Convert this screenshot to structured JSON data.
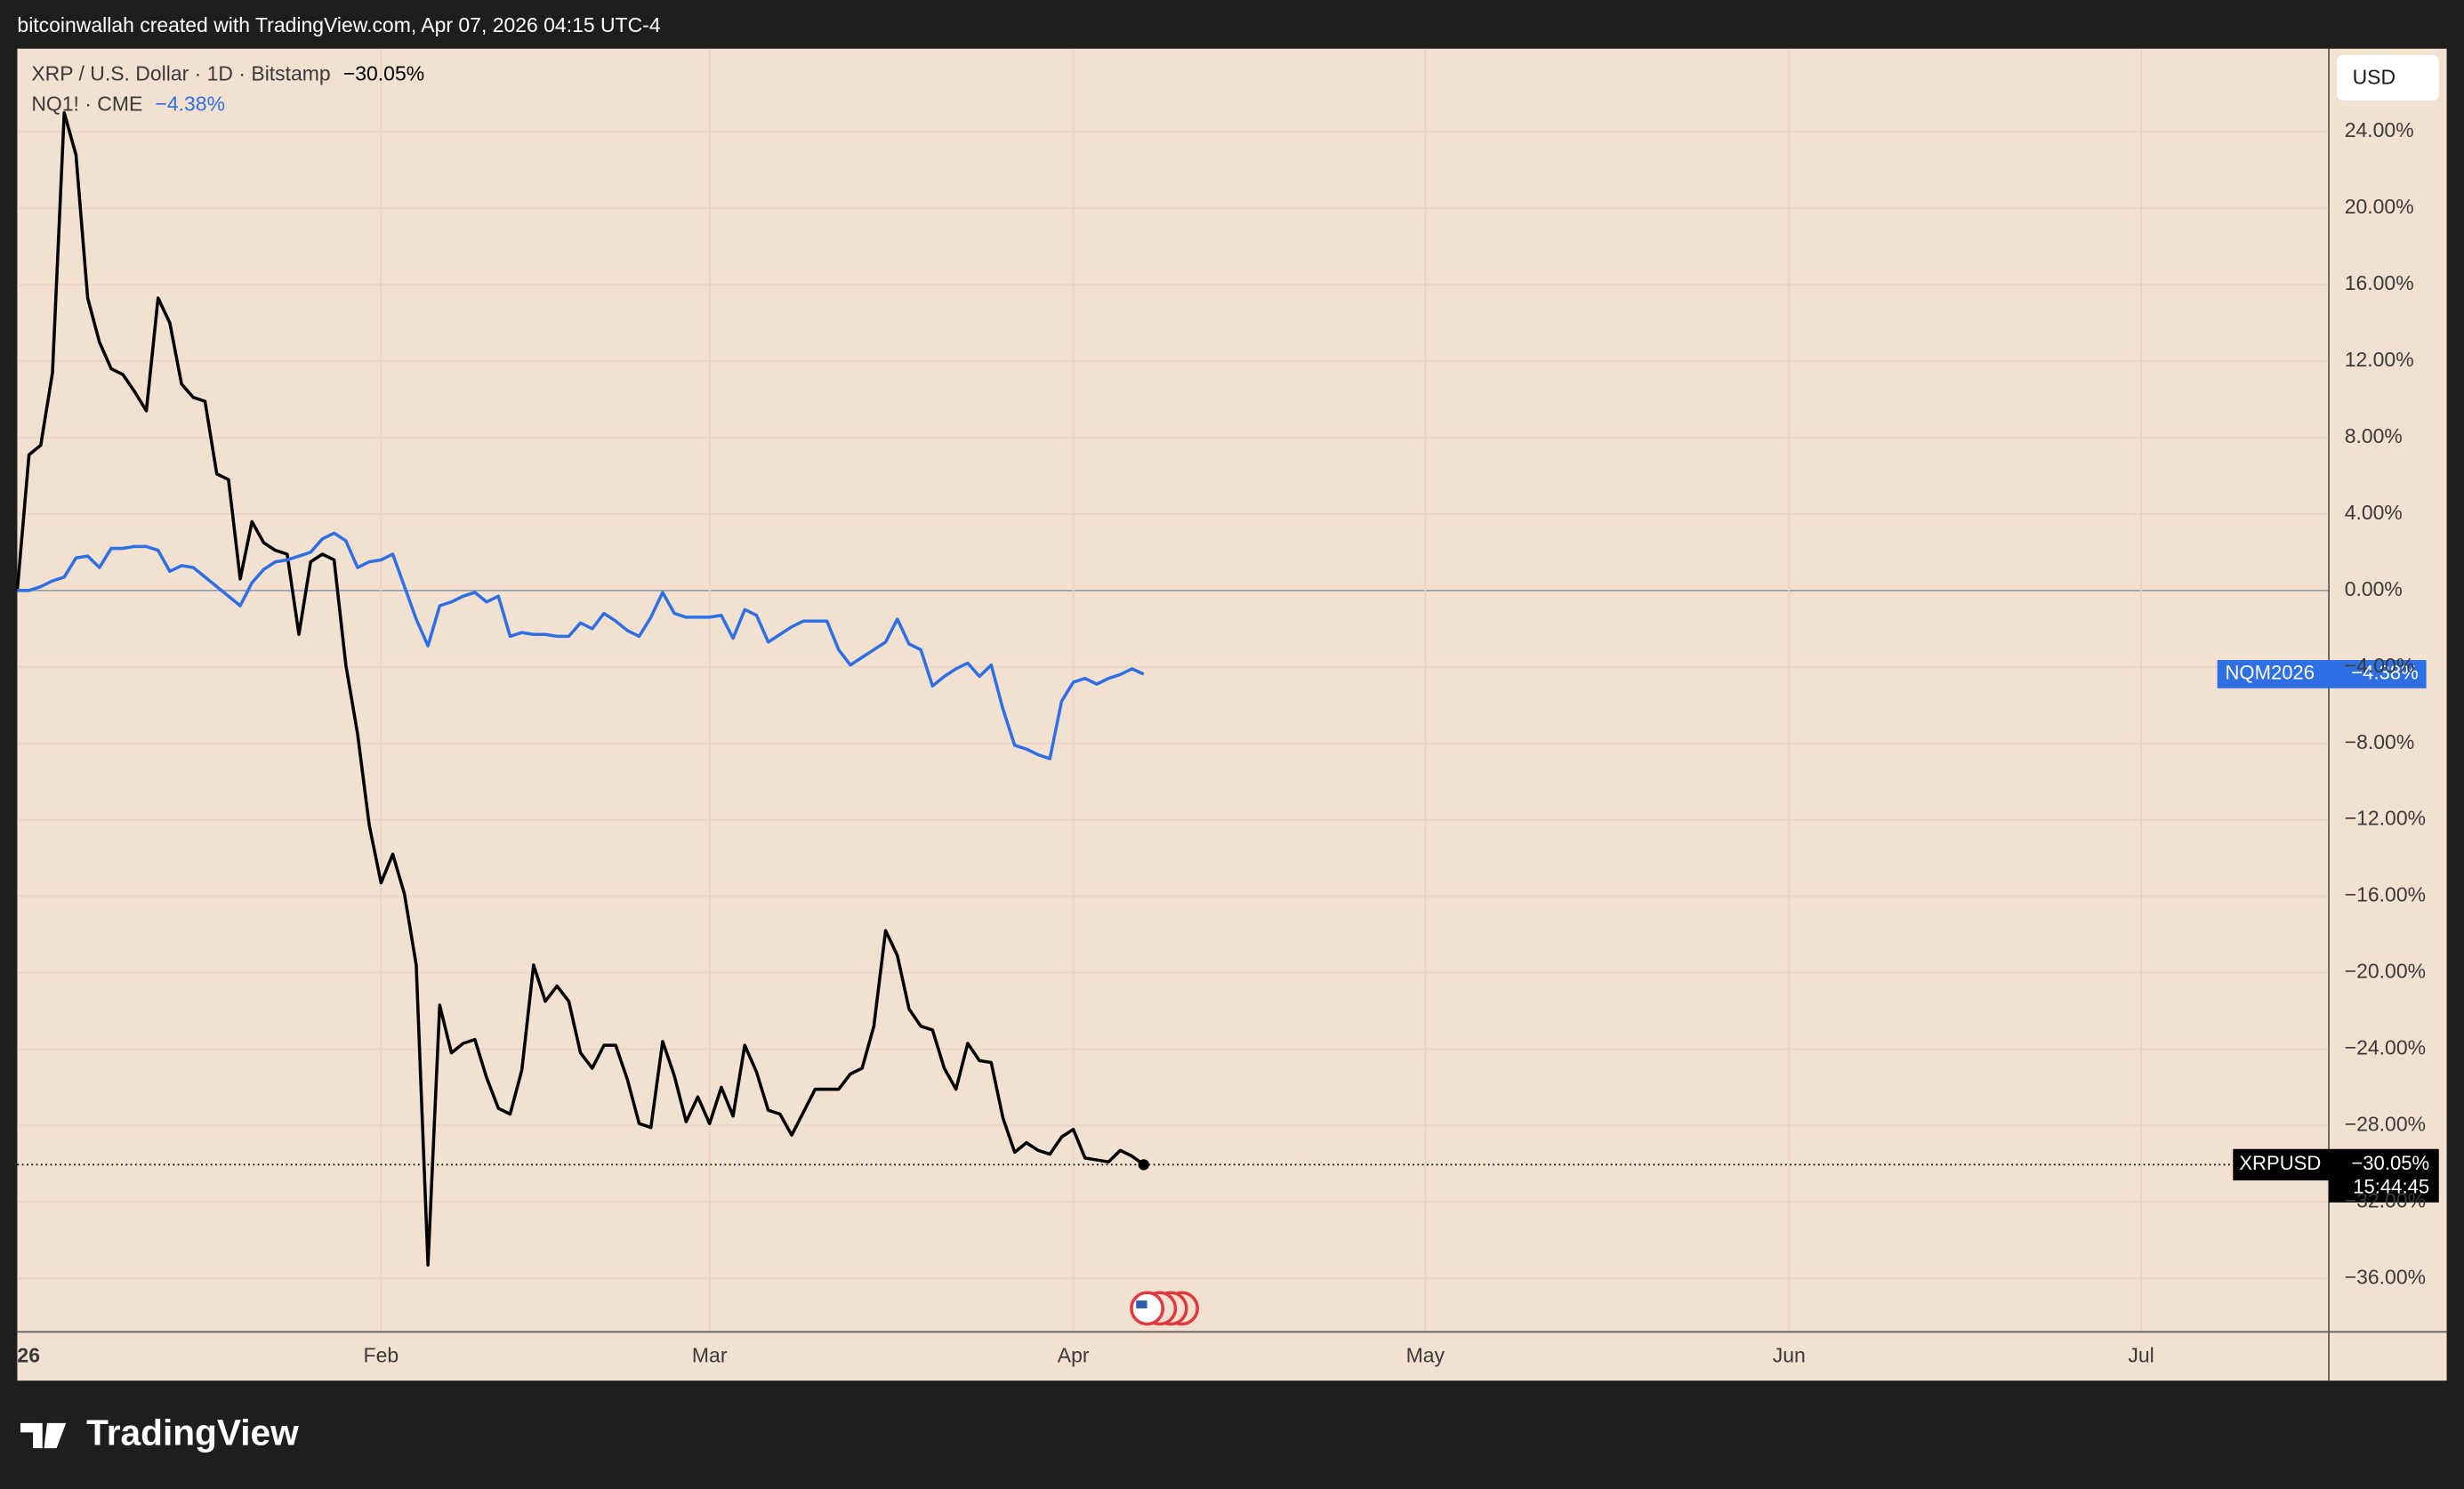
{
  "chart_data": {
    "type": "line",
    "header": "bitcoinwallah created with TradingView.com, Apr 07, 2026 04:15 UTC-4",
    "currency": "USD",
    "brand": "TradingView",
    "countdown": "15:44:45",
    "x": [
      1,
      2,
      3,
      4,
      5,
      6,
      7,
      8,
      9,
      10,
      11,
      12,
      13,
      14,
      15,
      16,
      17,
      18,
      19,
      20,
      21,
      22,
      23,
      24,
      25,
      26,
      27,
      28,
      29,
      30,
      31,
      32,
      33,
      34,
      35,
      36,
      37,
      38,
      39,
      40,
      41,
      42,
      43,
      44,
      45,
      46,
      47,
      48,
      49,
      50,
      51,
      52,
      53,
      54,
      55,
      56,
      57,
      58,
      59,
      60,
      61,
      62,
      63,
      64,
      65,
      66,
      67,
      68,
      69,
      70,
      71,
      72,
      73,
      74,
      75,
      76,
      77,
      78,
      79,
      80,
      81,
      82,
      83,
      84,
      85,
      86,
      87,
      88,
      89,
      90,
      91,
      92,
      93,
      94,
      95,
      96,
      97
    ],
    "xlim": [
      1,
      198
    ],
    "xticks": [
      {
        "value": 1,
        "label": "26"
      },
      {
        "value": 32,
        "label": "Feb"
      },
      {
        "value": 60,
        "label": "Mar"
      },
      {
        "value": 91,
        "label": "Apr"
      },
      {
        "value": 121,
        "label": "May"
      },
      {
        "value": 152,
        "label": "Jun"
      },
      {
        "value": 182,
        "label": "Jul"
      }
    ],
    "ylim": [
      -38.8,
      28.35
    ],
    "yticks": [
      {
        "value": 24,
        "label": "24.00%"
      },
      {
        "value": 20,
        "label": "20.00%"
      },
      {
        "value": 16,
        "label": "16.00%"
      },
      {
        "value": 12,
        "label": "12.00%"
      },
      {
        "value": 8,
        "label": "8.00%"
      },
      {
        "value": 4,
        "label": "4.00%"
      },
      {
        "value": 0,
        "label": "0.00%"
      },
      {
        "value": -4,
        "label": "−4.00%"
      },
      {
        "value": -8,
        "label": "−8.00%"
      },
      {
        "value": -12,
        "label": "−12.00%"
      },
      {
        "value": -16,
        "label": "−16.00%"
      },
      {
        "value": -20,
        "label": "−20.00%"
      },
      {
        "value": -24,
        "label": "−24.00%"
      },
      {
        "value": -28,
        "label": "−28.00%"
      },
      {
        "value": -32,
        "label": "−32.00%"
      },
      {
        "value": -36,
        "label": "−36.00%"
      }
    ],
    "grid": true,
    "series": [
      {
        "name": "XRP / U.S. Dollar · 1D · Bitstamp",
        "symbol": "XRPUSD",
        "last_label": "−30.05%",
        "color": "#000000",
        "values": [
          0,
          7.1,
          7.6,
          11.4,
          25.0,
          22.8,
          15.3,
          13.0,
          11.6,
          11.3,
          10.4,
          9.4,
          15.3,
          14.0,
          10.8,
          10.1,
          9.9,
          6.1,
          5.8,
          0.6,
          3.6,
          2.5,
          2.1,
          1.9,
          -2.3,
          1.5,
          1.9,
          1.6,
          -3.9,
          -7.5,
          -12.3,
          -15.3,
          -13.8,
          -15.9,
          -19.6,
          -35.3,
          -21.7,
          -24.2,
          -23.7,
          -23.5,
          -25.5,
          -27.1,
          -27.4,
          -25.1,
          -19.6,
          -21.5,
          -20.7,
          -21.5,
          -24.2,
          -25.0,
          -23.8,
          -23.8,
          -25.6,
          -27.9,
          -28.1,
          -23.6,
          -25.4,
          -27.8,
          -26.5,
          -27.9,
          -26.0,
          -27.5,
          -23.8,
          -25.2,
          -27.2,
          -27.4,
          -28.5,
          -27.3,
          -26.1,
          -26.1,
          -26.1,
          -25.3,
          -25.0,
          -22.8,
          -17.8,
          -19.1,
          -21.9,
          -22.8,
          -23.0,
          -25.0,
          -26.1,
          -23.7,
          -24.6,
          -24.7,
          -27.6,
          -29.4,
          -28.9,
          -29.3,
          -29.5,
          -28.6,
          -28.2,
          -29.7,
          -29.8,
          -29.9,
          -29.3,
          -29.6,
          -30.05
        ]
      },
      {
        "name": "NQ1! · CME",
        "symbol": "NQM2026",
        "last_label": "−4.38%",
        "color": "#2f6fe4",
        "values": [
          0,
          0,
          0.2,
          0.5,
          0.7,
          1.7,
          1.8,
          1.2,
          2.2,
          2.2,
          2.3,
          2.3,
          2.1,
          1.0,
          1.3,
          1.2,
          0.7,
          0.2,
          -0.3,
          -0.8,
          0.4,
          1.1,
          1.5,
          1.6,
          1.8,
          2.0,
          2.7,
          3.0,
          2.6,
          1.2,
          1.5,
          1.6,
          1.9,
          0.2,
          -1.5,
          -2.9,
          -0.8,
          -0.6,
          -0.3,
          -0.1,
          -0.6,
          -0.3,
          -2.4,
          -2.2,
          -2.3,
          -2.3,
          -2.4,
          -2.4,
          -1.7,
          -2.0,
          -1.2,
          -1.6,
          -2.1,
          -2.4,
          -1.4,
          -0.1,
          -1.2,
          -1.4,
          -1.4,
          -1.4,
          -1.3,
          -2.5,
          -1.0,
          -1.3,
          -2.7,
          -2.3,
          -1.9,
          -1.6,
          -1.6,
          -1.6,
          -3.1,
          -3.9,
          -3.5,
          -3.1,
          -2.7,
          -1.5,
          -2.8,
          -3.1,
          -5.0,
          -4.5,
          -4.1,
          -3.8,
          -4.5,
          -3.9,
          -6.2,
          -8.1,
          -8.3,
          -8.6,
          -8.8,
          -5.8,
          -4.8,
          -4.6,
          -4.9,
          -4.6,
          -4.4,
          -4.1,
          -4.38
        ]
      }
    ]
  }
}
